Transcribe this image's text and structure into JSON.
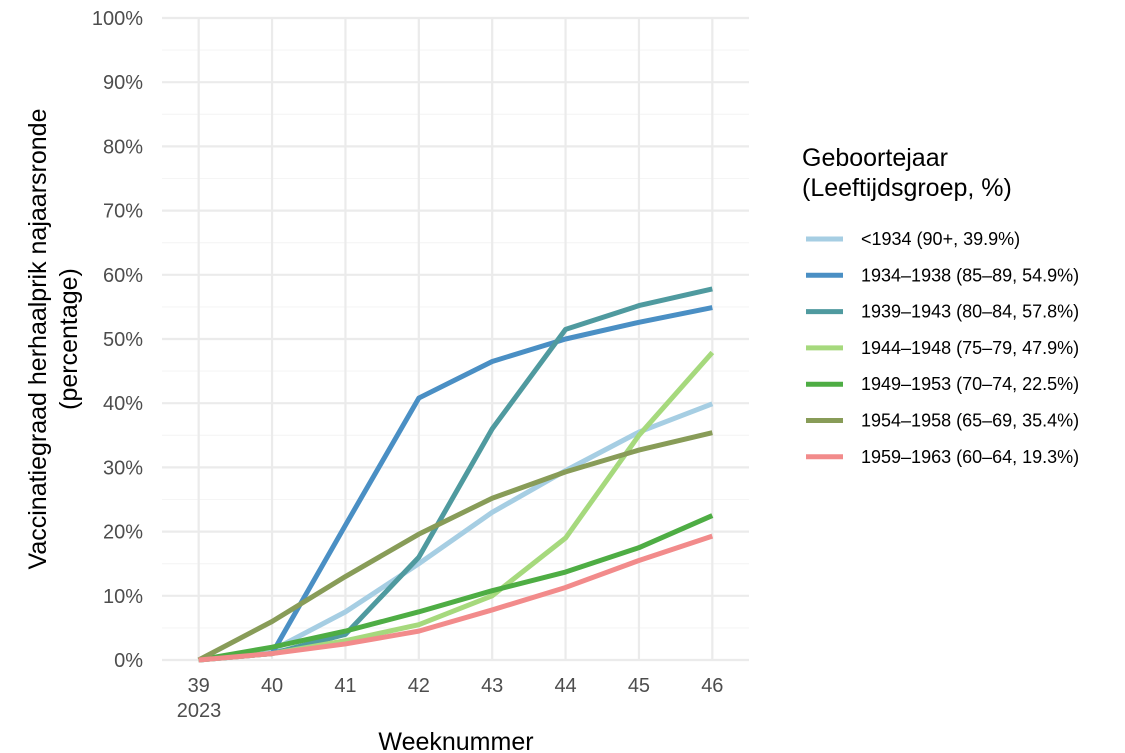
{
  "chart_data": {
    "type": "line",
    "xlabel": "Weeknummer",
    "ylabel_lines": [
      "Vaccinatiegraad herhaalprik najaarsronde",
      "(percentage)"
    ],
    "x": [
      39,
      40,
      41,
      42,
      43,
      44,
      45,
      46
    ],
    "x_tick_labels": [
      "39",
      "40",
      "41",
      "42",
      "43",
      "44",
      "45",
      "46"
    ],
    "x_sub_label": "2023",
    "ylim": [
      0,
      100
    ],
    "y_ticks": [
      0,
      10,
      20,
      30,
      40,
      50,
      60,
      70,
      80,
      90,
      100
    ],
    "y_tick_labels": [
      "0%",
      "10%",
      "20%",
      "30%",
      "40%",
      "50%",
      "60%",
      "70%",
      "80%",
      "90%",
      "100%"
    ],
    "grid": true,
    "legend_position": "right",
    "legend_title_lines": [
      "Geboortejaar",
      "(Leeftijdsgroep, %)"
    ],
    "series": [
      {
        "name": "<1934 (90+, 39.9%)",
        "color": "#a6cee3",
        "values": [
          0,
          1.5,
          7.5,
          15,
          23,
          29.5,
          35.5,
          39.9
        ]
      },
      {
        "name": "1934–1938 (85–89, 54.9%)",
        "color": "#4a8fc4",
        "values": [
          0,
          1.0,
          21,
          40.8,
          46.5,
          50,
          52.6,
          54.9
        ]
      },
      {
        "name": "1939–1943 (80–84, 57.8%)",
        "color": "#4f9a9f",
        "values": [
          0,
          1.0,
          4,
          16,
          36,
          51.5,
          55.2,
          57.8
        ]
      },
      {
        "name": "1944–1948 (75–79, 47.9%)",
        "color": "#a6d97d",
        "values": [
          0,
          1.0,
          3,
          5.5,
          10,
          19,
          35,
          47.9
        ]
      },
      {
        "name": "1949–1953 (70–74, 22.5%)",
        "color": "#4ead44",
        "values": [
          0,
          2.0,
          4.5,
          7.5,
          10.8,
          13.7,
          17.5,
          22.5
        ]
      },
      {
        "name": "1954–1958 (65–69, 35.4%)",
        "color": "#889c58",
        "values": [
          0,
          6,
          13,
          19.6,
          25.2,
          29.3,
          32.7,
          35.4
        ]
      },
      {
        "name": "1959–1963 (60–64, 19.3%)",
        "color": "#f28b8b",
        "values": [
          0,
          1.0,
          2.5,
          4.5,
          7.8,
          11.3,
          15.5,
          19.3
        ]
      }
    ]
  }
}
